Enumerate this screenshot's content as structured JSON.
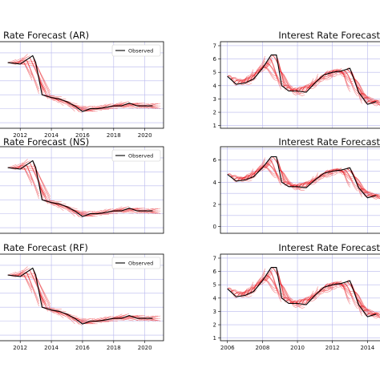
{
  "chart_data": [
    {
      "type": "line",
      "title": "Rate Forecast (AR)",
      "legend": "top-right",
      "legend_label": "Observed",
      "grid": true,
      "xticks": [
        "2012",
        "2014",
        "2016",
        "2018",
        "2020"
      ],
      "yticks": [],
      "observed": {
        "x": [
          2011.2,
          2012.0,
          2012.8,
          2013.0,
          2013.4,
          2014.0,
          2014.5,
          2015.0,
          2015.5,
          2016.0,
          2016.5,
          2017.0,
          2017.5,
          2018.0,
          2018.5,
          2019.0,
          2019.5,
          2020.0,
          2020.5
        ],
        "y": [
          5.3,
          5.2,
          5.8,
          5.3,
          3.0,
          2.8,
          2.7,
          2.5,
          2.2,
          1.8,
          2.0,
          2.0,
          2.1,
          2.2,
          2.2,
          2.4,
          2.2,
          2.2,
          2.2
        ]
      }
    },
    {
      "type": "line",
      "title": "Interest Rate Forecast",
      "legend": "none",
      "grid": true,
      "xticks": [],
      "yticks": [
        "1",
        "2",
        "3",
        "4",
        "5",
        "6",
        "7"
      ],
      "observed": {
        "x": [
          2006.0,
          2006.5,
          2007.0,
          2007.5,
          2008.0,
          2008.5,
          2008.8,
          2009.1,
          2009.5,
          2010.0,
          2010.5,
          2011.0,
          2011.5,
          2012.0,
          2012.5,
          2013.0,
          2013.5,
          2014.0,
          2014.5
        ],
        "y": [
          4.7,
          4.1,
          4.2,
          4.5,
          5.3,
          6.3,
          6.3,
          4.0,
          3.6,
          3.6,
          3.5,
          4.2,
          4.8,
          5.0,
          5.1,
          5.3,
          3.5,
          2.6,
          2.8
        ]
      }
    },
    {
      "type": "line",
      "title": "Rate Forecast (NS)",
      "legend": "top-right",
      "legend_label": "Observed",
      "grid": true,
      "xticks": [],
      "yticks": [],
      "observed": {
        "x": [
          2011.2,
          2012.0,
          2012.8,
          2013.0,
          2013.4,
          2014.0,
          2014.5,
          2015.0,
          2015.5,
          2016.0,
          2016.5,
          2017.0,
          2017.5,
          2018.0,
          2018.5,
          2019.0,
          2019.5,
          2020.0,
          2020.5
        ],
        "y": [
          5.3,
          5.2,
          5.8,
          5.3,
          3.0,
          2.8,
          2.7,
          2.5,
          2.2,
          1.8,
          2.0,
          2.0,
          2.1,
          2.2,
          2.2,
          2.4,
          2.2,
          2.2,
          2.2
        ]
      }
    },
    {
      "type": "line",
      "title": "Interest Rate Forecast",
      "legend": "none",
      "grid": true,
      "xticks": [],
      "yticks": [
        "0",
        "2",
        "4",
        "6"
      ],
      "observed": {
        "x": [
          2006.0,
          2006.5,
          2007.0,
          2007.5,
          2008.0,
          2008.5,
          2008.8,
          2009.1,
          2009.5,
          2010.0,
          2010.5,
          2011.0,
          2011.5,
          2012.0,
          2012.5,
          2013.0,
          2013.5,
          2014.0,
          2014.5
        ],
        "y": [
          4.7,
          4.1,
          4.2,
          4.5,
          5.3,
          6.3,
          6.3,
          4.0,
          3.6,
          3.6,
          3.5,
          4.2,
          4.8,
          5.0,
          5.1,
          5.3,
          3.5,
          2.6,
          2.8
        ]
      }
    },
    {
      "type": "line",
      "title": "Rate Forecast (RF)",
      "legend": "top-right",
      "legend_label": "Observed",
      "grid": true,
      "xticks": [
        "2012",
        "2014",
        "2016",
        "2018",
        "2020"
      ],
      "yticks": [],
      "observed": {
        "x": [
          2011.2,
          2012.0,
          2012.8,
          2013.0,
          2013.4,
          2014.0,
          2014.5,
          2015.0,
          2015.5,
          2016.0,
          2016.5,
          2017.0,
          2017.5,
          2018.0,
          2018.5,
          2019.0,
          2019.5,
          2020.0,
          2020.5
        ],
        "y": [
          5.3,
          5.2,
          5.8,
          5.3,
          3.0,
          2.8,
          2.7,
          2.5,
          2.2,
          1.8,
          2.0,
          2.0,
          2.1,
          2.2,
          2.2,
          2.4,
          2.2,
          2.2,
          2.2
        ]
      }
    },
    {
      "type": "line",
      "title": "Interest Rate Forecast",
      "legend": "none",
      "grid": true,
      "xticks": [
        "2006",
        "2008",
        "2010",
        "2012",
        "2014"
      ],
      "yticks": [
        "1",
        "2",
        "3",
        "4",
        "5",
        "6",
        "7"
      ],
      "observed": {
        "x": [
          2006.0,
          2006.5,
          2007.0,
          2007.5,
          2008.0,
          2008.5,
          2008.8,
          2009.1,
          2009.5,
          2010.0,
          2010.5,
          2011.0,
          2011.5,
          2012.0,
          2012.5,
          2013.0,
          2013.5,
          2014.0,
          2014.5
        ],
        "y": [
          4.7,
          4.1,
          4.2,
          4.5,
          5.3,
          6.3,
          6.3,
          4.0,
          3.6,
          3.6,
          3.5,
          4.2,
          4.8,
          5.0,
          5.1,
          5.3,
          3.5,
          2.6,
          2.8
        ]
      }
    }
  ],
  "colors": {
    "observed": "#000000",
    "forecast": "#e8141c",
    "grid": "#b8b8ee",
    "frame": "#000000"
  }
}
